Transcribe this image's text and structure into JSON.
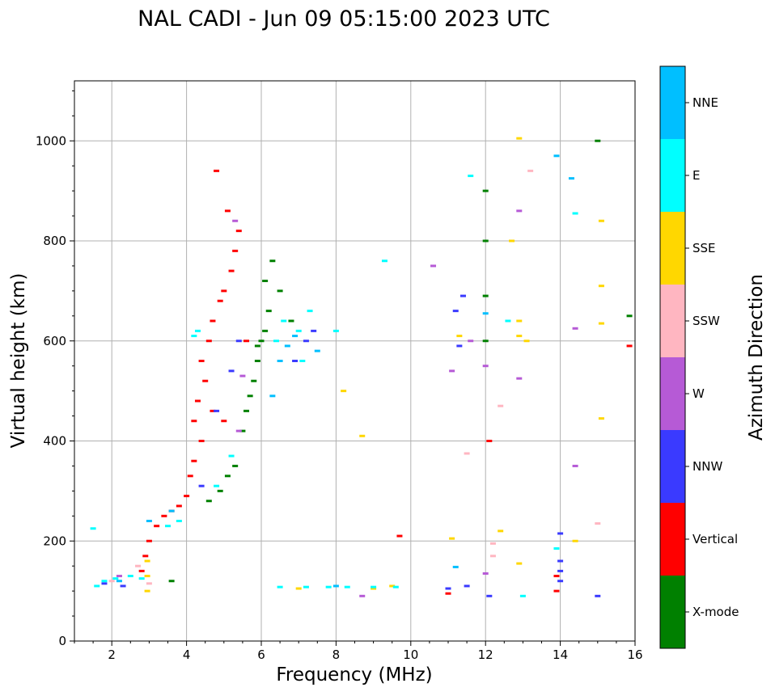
{
  "chart_data": {
    "type": "scatter",
    "title": "NAL CADI - Jun 09 05:15:00 2023 UTC",
    "xlabel": "Frequency (MHz)",
    "ylabel": "Virtual height (km)",
    "xlim": [
      1,
      16
    ],
    "ylim": [
      0,
      1120
    ],
    "xticks": [
      2,
      4,
      6,
      8,
      10,
      12,
      14,
      16
    ],
    "yticks": [
      0,
      200,
      400,
      600,
      800,
      1000
    ],
    "grid": true,
    "colorbar": {
      "label": "Azimuth Direction",
      "categories": [
        {
          "name": "X-mode",
          "color": "#008000"
        },
        {
          "name": "Vertical",
          "color": "#ff0000"
        },
        {
          "name": "NNW",
          "color": "#3a3aff"
        },
        {
          "name": "W",
          "color": "#b65ad6"
        },
        {
          "name": "SSW",
          "color": "#ffb6c1"
        },
        {
          "name": "SSE",
          "color": "#ffd700"
        },
        {
          "name": "E",
          "color": "#00ffff"
        },
        {
          "name": "NNE",
          "color": "#00bfff"
        }
      ]
    },
    "series": [
      {
        "name": "X-mode",
        "points": [
          [
            4.6,
            280
          ],
          [
            4.9,
            300
          ],
          [
            5.1,
            330
          ],
          [
            5.3,
            350
          ],
          [
            5.5,
            420
          ],
          [
            5.6,
            460
          ],
          [
            5.7,
            490
          ],
          [
            5.8,
            520
          ],
          [
            5.9,
            560
          ],
          [
            6.0,
            600
          ],
          [
            6.1,
            620
          ],
          [
            6.2,
            660
          ],
          [
            6.5,
            700
          ],
          [
            6.8,
            640
          ],
          [
            6.3,
            760
          ],
          [
            5.9,
            590
          ],
          [
            6.1,
            720
          ],
          [
            3.6,
            120
          ],
          [
            12.0,
            900
          ],
          [
            12.0,
            800
          ],
          [
            12.0,
            690
          ],
          [
            12.0,
            600
          ],
          [
            15.0,
            1000
          ],
          [
            15.85,
            650
          ]
        ]
      },
      {
        "name": "Vertical",
        "points": [
          [
            2.8,
            140
          ],
          [
            2.9,
            170
          ],
          [
            3.0,
            200
          ],
          [
            3.2,
            230
          ],
          [
            3.4,
            250
          ],
          [
            3.6,
            260
          ],
          [
            3.8,
            270
          ],
          [
            4.0,
            290
          ],
          [
            4.1,
            330
          ],
          [
            4.2,
            360
          ],
          [
            4.4,
            400
          ],
          [
            4.2,
            440
          ],
          [
            4.3,
            480
          ],
          [
            4.5,
            520
          ],
          [
            4.4,
            560
          ],
          [
            4.6,
            600
          ],
          [
            4.7,
            640
          ],
          [
            4.9,
            680
          ],
          [
            5.0,
            700
          ],
          [
            5.2,
            740
          ],
          [
            5.3,
            780
          ],
          [
            5.4,
            820
          ],
          [
            5.1,
            860
          ],
          [
            4.8,
            940
          ],
          [
            5.6,
            600
          ],
          [
            4.7,
            460
          ],
          [
            5.0,
            440
          ],
          [
            9.7,
            210
          ],
          [
            11.0,
            95
          ],
          [
            13.9,
            100
          ],
          [
            13.9,
            130
          ],
          [
            15.85,
            590
          ],
          [
            12.1,
            400
          ]
        ]
      },
      {
        "name": "NNW",
        "points": [
          [
            4.4,
            310
          ],
          [
            4.8,
            460
          ],
          [
            5.2,
            540
          ],
          [
            5.4,
            600
          ],
          [
            7.2,
            600
          ],
          [
            7.4,
            620
          ],
          [
            6.9,
            560
          ],
          [
            11.3,
            590
          ],
          [
            11.4,
            690
          ],
          [
            11.2,
            660
          ],
          [
            14.0,
            120
          ],
          [
            14.0,
            140
          ],
          [
            15.0,
            90
          ],
          [
            12.1,
            90
          ],
          [
            11.0,
            105
          ],
          [
            11.5,
            110
          ],
          [
            14.0,
            160
          ],
          [
            14.0,
            215
          ],
          [
            1.8,
            115
          ],
          [
            2.3,
            110
          ]
        ]
      },
      {
        "name": "W",
        "points": [
          [
            5.5,
            530
          ],
          [
            5.4,
            420
          ],
          [
            5.3,
            840
          ],
          [
            11.1,
            540
          ],
          [
            12.0,
            550
          ],
          [
            12.9,
            860
          ],
          [
            14.4,
            625
          ],
          [
            14.4,
            350
          ],
          [
            12.0,
            135
          ],
          [
            8.7,
            90
          ],
          [
            10.6,
            750
          ],
          [
            11.6,
            600
          ],
          [
            12.9,
            525
          ],
          [
            2.2,
            130
          ]
        ]
      },
      {
        "name": "SSW",
        "points": [
          [
            11.5,
            375
          ],
          [
            12.4,
            470
          ],
          [
            12.2,
            195
          ],
          [
            13.2,
            940
          ],
          [
            12.2,
            170
          ],
          [
            15.0,
            235
          ],
          [
            2.7,
            150
          ],
          [
            2.0,
            120
          ],
          [
            3.0,
            115
          ]
        ]
      },
      {
        "name": "SSE",
        "points": [
          [
            2.95,
            100
          ],
          [
            2.95,
            130
          ],
          [
            2.95,
            160
          ],
          [
            8.2,
            500
          ],
          [
            8.7,
            410
          ],
          [
            11.3,
            610
          ],
          [
            12.7,
            800
          ],
          [
            12.9,
            1005
          ],
          [
            12.9,
            640
          ],
          [
            12.9,
            610
          ],
          [
            13.1,
            600
          ],
          [
            12.9,
            155
          ],
          [
            12.4,
            220
          ],
          [
            11.1,
            205
          ],
          [
            14.4,
            200
          ],
          [
            15.1,
            840
          ],
          [
            15.1,
            710
          ],
          [
            15.1,
            635
          ],
          [
            15.1,
            445
          ],
          [
            9.0,
            105
          ],
          [
            9.5,
            110
          ],
          [
            7.0,
            105
          ]
        ]
      },
      {
        "name": "E",
        "points": [
          [
            1.6,
            110
          ],
          [
            1.8,
            120
          ],
          [
            2.1,
            125
          ],
          [
            2.5,
            130
          ],
          [
            2.8,
            125
          ],
          [
            3.5,
            230
          ],
          [
            3.8,
            240
          ],
          [
            4.2,
            610
          ],
          [
            4.3,
            620
          ],
          [
            4.8,
            310
          ],
          [
            5.2,
            370
          ],
          [
            6.4,
            600
          ],
          [
            6.6,
            640
          ],
          [
            7.1,
            560
          ],
          [
            7.0,
            620
          ],
          [
            7.3,
            660
          ],
          [
            6.5,
            108
          ],
          [
            7.2,
            108
          ],
          [
            7.8,
            108
          ],
          [
            8.3,
            108
          ],
          [
            9.0,
            108
          ],
          [
            9.6,
            108
          ],
          [
            11.6,
            930
          ],
          [
            12.6,
            640
          ],
          [
            13.0,
            90
          ],
          [
            13.9,
            185
          ],
          [
            14.4,
            855
          ],
          [
            1.5,
            225
          ],
          [
            8.0,
            620
          ],
          [
            9.3,
            760
          ]
        ]
      },
      {
        "name": "NNE",
        "points": [
          [
            2.2,
            120
          ],
          [
            3.0,
            240
          ],
          [
            3.6,
            260
          ],
          [
            6.3,
            490
          ],
          [
            6.5,
            560
          ],
          [
            6.7,
            590
          ],
          [
            6.9,
            610
          ],
          [
            7.5,
            580
          ],
          [
            13.9,
            970
          ],
          [
            14.3,
            925
          ],
          [
            12.0,
            655
          ],
          [
            8.0,
            110
          ],
          [
            11.2,
            148
          ]
        ]
      }
    ]
  }
}
